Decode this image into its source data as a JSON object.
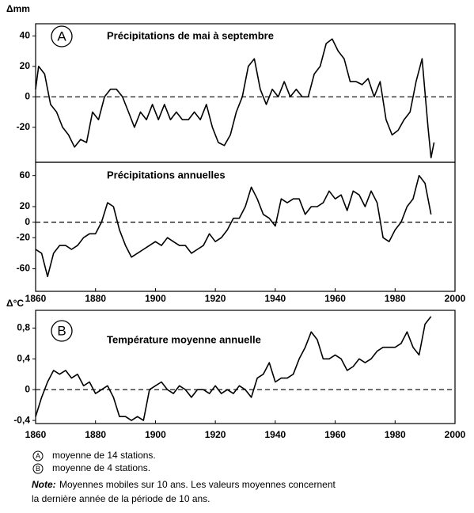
{
  "chart_data": [
    {
      "type": "line",
      "panel": "A",
      "title": "Précipitations de mai à septembre",
      "y_label": "Δmm",
      "x": [
        1860,
        1861,
        1863,
        1865,
        1867,
        1869,
        1871,
        1873,
        1875,
        1877,
        1879,
        1881,
        1883,
        1885,
        1887,
        1889,
        1891,
        1893,
        1895,
        1897,
        1899,
        1901,
        1903,
        1905,
        1907,
        1909,
        1911,
        1913,
        1915,
        1917,
        1919,
        1921,
        1923,
        1925,
        1927,
        1929,
        1931,
        1933,
        1935,
        1937,
        1939,
        1941,
        1943,
        1945,
        1947,
        1949,
        1951,
        1953,
        1955,
        1957,
        1959,
        1961,
        1963,
        1965,
        1967,
        1969,
        1971,
        1973,
        1975,
        1977,
        1979,
        1981,
        1983,
        1985,
        1987,
        1989,
        1991,
        1992,
        1993
      ],
      "values": [
        5,
        20,
        15,
        -5,
        -10,
        -20,
        -25,
        -33,
        -28,
        -30,
        -10,
        -15,
        0,
        5,
        5,
        0,
        -10,
        -20,
        -10,
        -15,
        -5,
        -15,
        -5,
        -15,
        -10,
        -15,
        -15,
        -10,
        -15,
        -5,
        -20,
        -30,
        -32,
        -25,
        -10,
        0,
        20,
        25,
        5,
        -5,
        5,
        0,
        10,
        0,
        5,
        0,
        0,
        15,
        20,
        35,
        38,
        30,
        25,
        10,
        10,
        8,
        12,
        0,
        10,
        -15,
        -25,
        -22,
        -15,
        -10,
        10,
        25,
        -20,
        -40,
        -30
      ],
      "color": "#000000",
      "xlim": [
        1860,
        2000
      ],
      "ylim": [
        -43,
        48
      ],
      "yticks": [
        40,
        20,
        0,
        -20
      ]
    },
    {
      "type": "line",
      "title": "Précipitations annuelles",
      "x": [
        1860,
        1862,
        1864,
        1866,
        1868,
        1870,
        1872,
        1874,
        1876,
        1878,
        1880,
        1882,
        1884,
        1886,
        1888,
        1890,
        1892,
        1894,
        1896,
        1898,
        1900,
        1902,
        1904,
        1906,
        1908,
        1910,
        1912,
        1914,
        1916,
        1918,
        1920,
        1922,
        1924,
        1926,
        1928,
        1930,
        1932,
        1934,
        1936,
        1938,
        1940,
        1942,
        1944,
        1946,
        1948,
        1950,
        1952,
        1954,
        1956,
        1958,
        1960,
        1962,
        1964,
        1966,
        1968,
        1970,
        1972,
        1974,
        1976,
        1978,
        1980,
        1982,
        1984,
        1986,
        1988,
        1990,
        1992
      ],
      "values": [
        -35,
        -40,
        -70,
        -40,
        -30,
        -30,
        -35,
        -30,
        -20,
        -15,
        -15,
        0,
        25,
        20,
        -10,
        -30,
        -45,
        -40,
        -35,
        -30,
        -25,
        -30,
        -20,
        -25,
        -30,
        -30,
        -40,
        -35,
        -30,
        -15,
        -25,
        -20,
        -10,
        5,
        5,
        20,
        45,
        30,
        10,
        5,
        -5,
        30,
        25,
        30,
        30,
        10,
        20,
        20,
        25,
        40,
        30,
        35,
        15,
        40,
        35,
        20,
        40,
        25,
        -20,
        -25,
        -10,
        0,
        20,
        30,
        60,
        50,
        10
      ],
      "color": "#000000",
      "xlim": [
        1860,
        2000
      ],
      "ylim": [
        -89,
        77
      ],
      "yticks": [
        60,
        20,
        0,
        -20,
        -60
      ],
      "xticks": [
        1860,
        1880,
        1900,
        1920,
        1940,
        1960,
        1980,
        2000
      ]
    },
    {
      "type": "line",
      "panel": "B",
      "title": "Température moyenne annuelle",
      "y_label": "Δ°C",
      "x": [
        1860,
        1862,
        1864,
        1866,
        1868,
        1870,
        1872,
        1874,
        1876,
        1878,
        1880,
        1882,
        1884,
        1886,
        1888,
        1890,
        1892,
        1894,
        1896,
        1898,
        1900,
        1902,
        1904,
        1906,
        1908,
        1910,
        1912,
        1914,
        1916,
        1918,
        1920,
        1922,
        1924,
        1926,
        1928,
        1930,
        1932,
        1934,
        1936,
        1938,
        1940,
        1942,
        1944,
        1946,
        1948,
        1950,
        1952,
        1954,
        1956,
        1958,
        1960,
        1962,
        1964,
        1966,
        1968,
        1970,
        1972,
        1974,
        1976,
        1978,
        1980,
        1982,
        1984,
        1986,
        1988,
        1990,
        1992
      ],
      "values": [
        -0.35,
        -0.1,
        0.1,
        0.25,
        0.2,
        0.25,
        0.15,
        0.2,
        0.05,
        0.1,
        -0.05,
        0,
        0.05,
        -0.1,
        -0.35,
        -0.35,
        -0.4,
        -0.35,
        -0.4,
        0,
        0.05,
        0.1,
        0,
        -0.05,
        0.05,
        0,
        -0.1,
        0,
        0,
        -0.05,
        0.05,
        -0.05,
        0,
        -0.05,
        0.05,
        0,
        -0.1,
        0.15,
        0.2,
        0.35,
        0.1,
        0.15,
        0.15,
        0.2,
        0.4,
        0.55,
        0.75,
        0.65,
        0.4,
        0.4,
        0.45,
        0.4,
        0.25,
        0.3,
        0.4,
        0.35,
        0.4,
        0.5,
        0.55,
        0.55,
        0.55,
        0.6,
        0.75,
        0.55,
        0.45,
        0.85,
        0.95
      ],
      "color": "#000000",
      "xlim": [
        1860,
        2000
      ],
      "ylim": [
        -0.44,
        1.03
      ],
      "yticks": [
        {
          "value": 0.8,
          "label": "0,8"
        },
        {
          "value": 0.4,
          "label": "0,4"
        },
        0,
        {
          "value": -0.4,
          "label": "-0,4"
        }
      ],
      "xticks": [
        1860,
        1880,
        1900,
        1920,
        1940,
        1960,
        1980,
        2000
      ]
    }
  ],
  "footnotes": [
    {
      "marker": "A",
      "text": "moyenne de 14 stations."
    },
    {
      "marker": "B",
      "text": "moyenne de 4 stations."
    }
  ],
  "note": {
    "label": "Note:",
    "lines": [
      "Moyennes mobiles sur 10 ans. Les valeurs moyennes concernent",
      "la dernière année de la période de 10 ans."
    ]
  }
}
